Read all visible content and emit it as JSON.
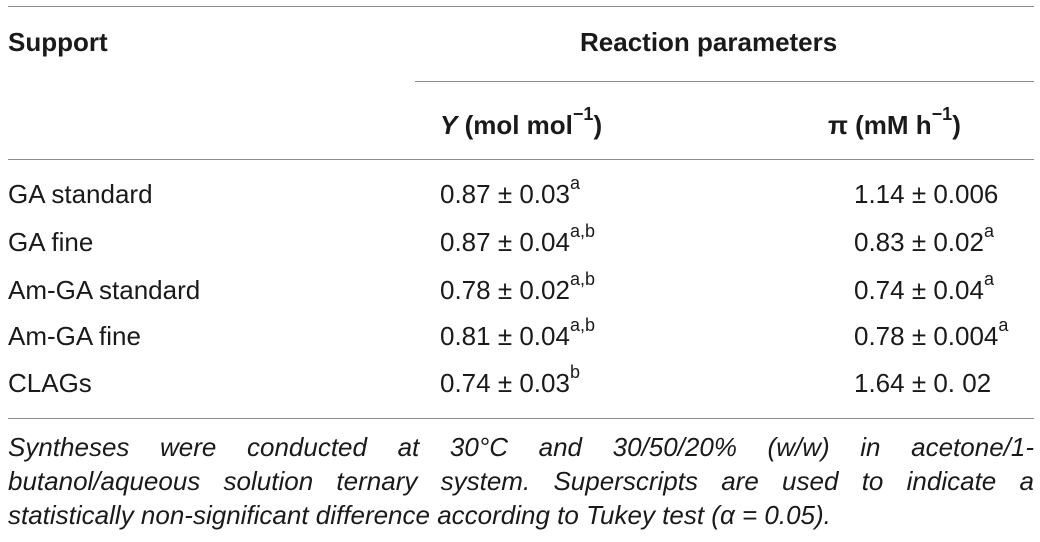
{
  "table": {
    "header": {
      "support": "Support",
      "group": "Reaction parameters",
      "y_symbol": "Y",
      "y_unit_prefix": " (mol mol",
      "y_unit_exp": "−1",
      "y_unit_suffix": ")",
      "pi_prefix": "π (mM h",
      "pi_exp": "−1",
      "pi_suffix": ")"
    },
    "rows": [
      {
        "support": "GA standard",
        "y": "0.87 ± 0.03",
        "y_sup": "a",
        "pi": "1.14 ± 0.006",
        "pi_sup": ""
      },
      {
        "support": "GA fine",
        "y": "0.87 ± 0.04",
        "y_sup": "a,b",
        "pi": "0.83 ± 0.02",
        "pi_sup": "a"
      },
      {
        "support": "Am-GA standard",
        "y": "0.78 ± 0.02",
        "y_sup": "a,b",
        "pi": "0.74 ± 0.04",
        "pi_sup": "a"
      },
      {
        "support": "Am-GA fine",
        "y": "0.81 ± 0.04",
        "y_sup": "a,b",
        "pi": "0.78 ± 0.004",
        "pi_sup": "a"
      },
      {
        "support": "CLAGs",
        "y": "0.74 ± 0.03",
        "y_sup": "b",
        "pi": "1.64 ± 0. 02",
        "pi_sup": ""
      }
    ]
  },
  "footnote": {
    "line1": "Syntheses were conducted at 30°C and 30/50/20% (w/w) in acetone/1-",
    "line2": "butanol/aqueous solution ternary system. Superscripts are used to indicate a",
    "line3": "statistically non-significant difference according to Tukey test (α = 0.05)."
  }
}
